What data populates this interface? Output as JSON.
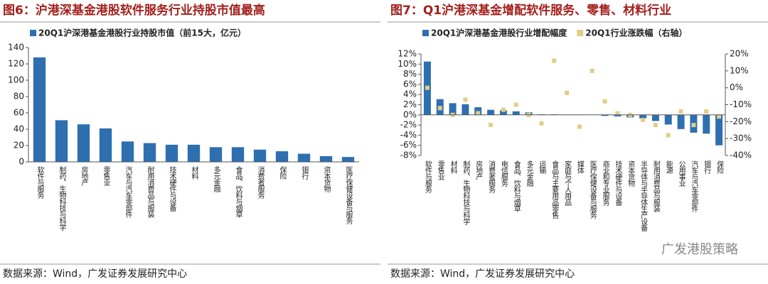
{
  "chart_data": [
    {
      "type": "bar",
      "title": "图6：沪港深基金港股软件服务行业持股市值最高",
      "categories": [
        "软件与服务",
        "制药、生物科技与科学",
        "房地产",
        "零售业",
        "汽车与汽车零部件",
        "耐用消费品与服装",
        "技术硬件与设备",
        "材料",
        "多元金融",
        "食品、饮料与烟草",
        "消费者服务",
        "保险",
        "银行",
        "资本货物",
        "医疗保健设备与服务"
      ],
      "series": [
        {
          "name": "20Q1沪深港基金港股行业持股市值（前15大，亿元）",
          "color": "#2e6fb0",
          "values": [
            128,
            51,
            46,
            41,
            25,
            23,
            21,
            21,
            18,
            18,
            15,
            13,
            10,
            7,
            6
          ]
        }
      ],
      "ylim": [
        0,
        140
      ],
      "yticks": [
        0,
        20,
        40,
        60,
        80,
        100,
        120,
        140
      ],
      "source": "数据来源：Wind，广发证券发展研究中心"
    },
    {
      "type": "bar",
      "title": "图7：Q1沪港深基金增配软件服务、零售、材料行业",
      "categories": [
        "软件与服务",
        "零售业",
        "材料",
        "制药、生物科技与科学",
        "房地产",
        "消费者服务",
        "电信服务",
        "食品、饮料与烟草",
        "多元金融",
        "运输",
        "食品与主要用品零售",
        "家庭与个人用品",
        "媒体",
        "医疗保健设备与服务",
        "商业和专业服务",
        "技术硬件与设备",
        "资本货物",
        "半导体与半导体生产设备",
        "耐用消费品与服装",
        "能源",
        "公用事业",
        "汽车与汽车零部件",
        "银行",
        "保险"
      ],
      "series": [
        {
          "name": "20Q1沪深港基金港股行业增配幅度",
          "color": "#2e6fb0",
          "values": [
            10.5,
            3.1,
            2.3,
            2.1,
            1.5,
            1.0,
            0.9,
            0.7,
            0.5,
            0.1,
            0.1,
            0.05,
            0.05,
            0,
            -0.2,
            -0.3,
            -0.5,
            -0.7,
            -1.2,
            -1.9,
            -2.8,
            -3.5,
            -3.7,
            -6.0
          ]
        },
        {
          "name": "20Q1行业涨跌幅（右轴）",
          "color": "#e2cd86",
          "type": "scatter",
          "axis": "y2",
          "values": [
            0,
            -12,
            -16,
            -7,
            -15,
            -22,
            -13,
            -10,
            -16,
            -21,
            16,
            -3,
            -23,
            10,
            -8,
            -15,
            -16,
            -19,
            -22,
            -28,
            -14,
            -22,
            -14,
            -17
          ]
        }
      ],
      "ylim": [
        -8,
        12
      ],
      "yticks": [
        {
          "value": -8,
          "label": "-8%"
        },
        {
          "value": -6,
          "label": "-6%"
        },
        {
          "value": -4,
          "label": "-4%"
        },
        {
          "value": -2,
          "label": "-2%"
        },
        {
          "value": 0,
          "label": "0%"
        },
        {
          "value": 2,
          "label": "2%"
        },
        {
          "value": 4,
          "label": "4%"
        },
        {
          "value": 6,
          "label": "6%"
        },
        {
          "value": 8,
          "label": "8%"
        },
        {
          "value": 10,
          "label": "10%"
        },
        {
          "value": 12,
          "label": "12%"
        }
      ],
      "y2lim": [
        -40,
        20
      ],
      "y2ticks": [
        {
          "value": -40,
          "label": "-40%"
        },
        {
          "value": -30,
          "label": "-30%"
        },
        {
          "value": -20,
          "label": "-20%"
        },
        {
          "value": -10,
          "label": "-10%"
        },
        {
          "value": 0,
          "label": "0%"
        },
        {
          "value": 10,
          "label": "10%"
        },
        {
          "value": 20,
          "label": "20%"
        }
      ],
      "source": "数据来源：Wind，广发证券发展研究中心"
    }
  ],
  "watermark": "广发港股策略"
}
